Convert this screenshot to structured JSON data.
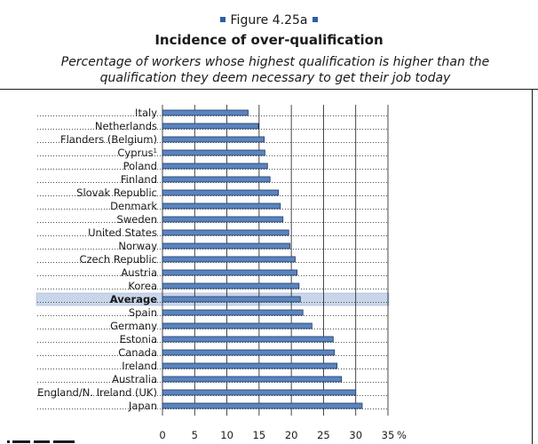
{
  "header": {
    "figure_label": "Figure 4.25a",
    "title": "Incidence of over-qualification",
    "subtitle": "Percentage of workers whose highest qualification is higher than the qualification they deem necessary to get their job today"
  },
  "colors": {
    "bar": "#5b84be",
    "bar_stroke": "#1f3a66",
    "highlight": "#c9d6ea",
    "accent": "#2c5fa8"
  },
  "chart_data": {
    "type": "bar",
    "orientation": "horizontal",
    "categories": [
      "Italy",
      "Netherlands",
      "Flanders (Belgium)",
      "Cyprus",
      "Poland",
      "Finland",
      "Slovak Republic",
      "Denmark",
      "Sweden",
      "United States",
      "Norway",
      "Czech Republic",
      "Austria",
      "Korea",
      "Average",
      "Spain",
      "Germany",
      "Estonia",
      "Canada",
      "Ireland",
      "Australia",
      "England/N. Ireland (UK)",
      "Japan"
    ],
    "superscripts": [
      "",
      "",
      "",
      "1",
      "",
      "",
      "",
      "",
      "",
      "",
      "",
      "",
      "",
      "",
      "",
      "",
      "",
      "",
      "",
      "",
      "",
      "",
      ""
    ],
    "highlight_category": "Average",
    "values": [
      13.3,
      14.9,
      15.8,
      15.9,
      16.3,
      16.7,
      18.0,
      18.3,
      18.7,
      19.6,
      19.8,
      20.6,
      20.9,
      21.2,
      21.4,
      21.8,
      23.2,
      26.5,
      26.7,
      27.1,
      27.8,
      30.0,
      31.0
    ],
    "xticks": [
      0,
      5,
      10,
      15,
      20,
      25,
      30,
      35
    ],
    "x_unit": "%",
    "xlim": [
      0,
      35
    ],
    "grid": true
  }
}
